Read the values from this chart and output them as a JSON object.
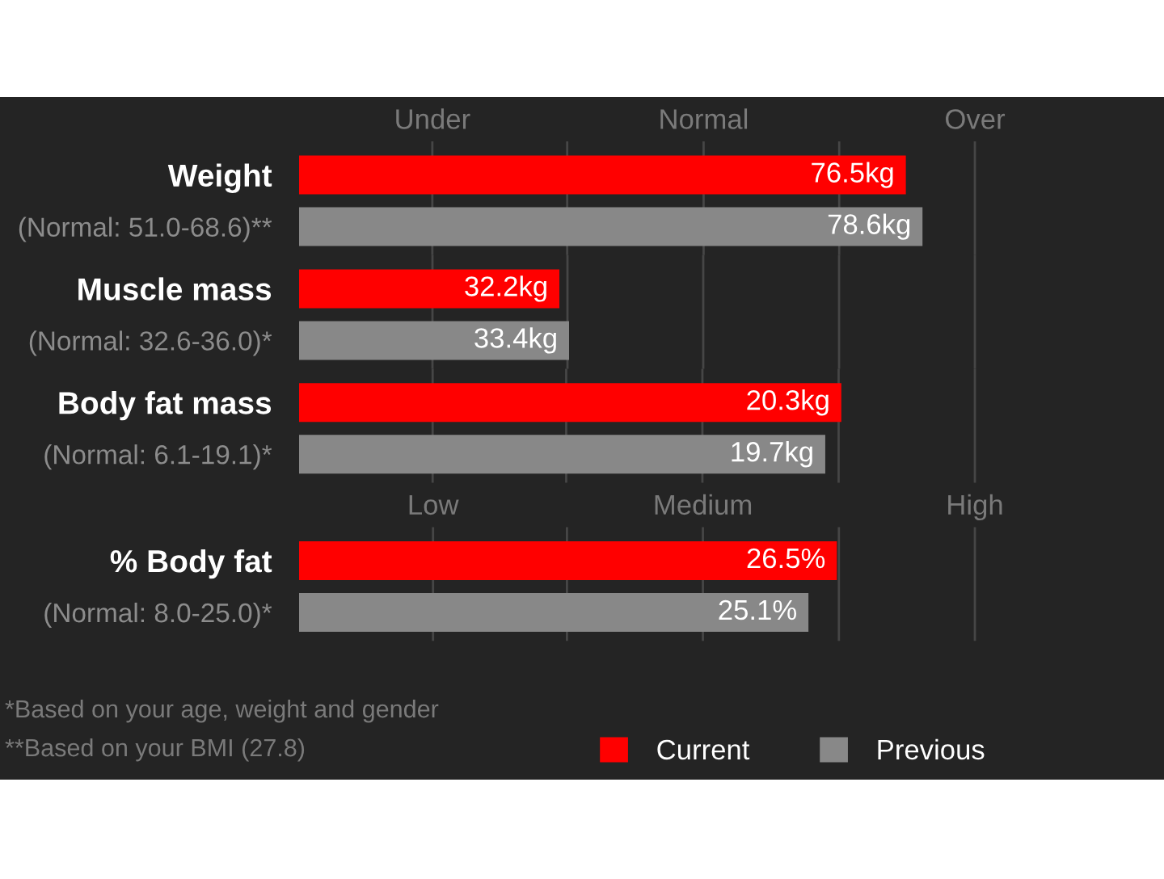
{
  "chart_data": [
    {
      "type": "bar",
      "orientation": "horizontal",
      "categories": [
        "Weight",
        "(Normal: 51.0-68.6)**"
      ],
      "series": [
        {
          "color": "#ff0000",
          "values": [
            76.5,
            null
          ],
          "value_labels": [
            "76.5kg",
            null
          ]
        },
        {
          "color": "#888888",
          "values": [
            null,
            78.6
          ],
          "value_labels": [
            null,
            "78.6kg"
          ]
        }
      ],
      "ref_lines": [
        {
          "axis": "x",
          "value": 16.8,
          "label": "Under",
          "color": "#464646"
        },
        {
          "axis": "x",
          "value": 33.8,
          "color": "#464646"
        },
        {
          "axis": "x",
          "value": 51.0,
          "label": "Normal",
          "color": "#464646"
        },
        {
          "axis": "x",
          "value": 68.1,
          "color": "#464646"
        },
        {
          "axis": "x",
          "value": 85.2,
          "label": "Over",
          "color": "#464646"
        }
      ]
    },
    {
      "type": "bar",
      "orientation": "horizontal",
      "categories": [
        "Muscle mass",
        "(Normal: 32.6-36.0)*"
      ],
      "series": [
        {
          "color": "#ff0000",
          "values": [
            32.2,
            null
          ],
          "value_labels": [
            "32.2kg",
            null
          ]
        },
        {
          "color": "#888888",
          "values": [
            null,
            33.4
          ],
          "value_labels": [
            null,
            "33.4kg"
          ]
        }
      ],
      "ref_lines": [
        {
          "axis": "x",
          "value": 16.5,
          "color": "#464646"
        },
        {
          "axis": "x",
          "value": 33.2,
          "color": "#464646"
        },
        {
          "axis": "x",
          "value": 50.0,
          "color": "#464646"
        },
        {
          "axis": "x",
          "value": 66.8,
          "color": "#464646"
        },
        {
          "axis": "x",
          "value": 83.6,
          "color": "#464646"
        }
      ]
    },
    {
      "type": "bar",
      "orientation": "horizontal",
      "categories": [
        "Body fat mass",
        "(Normal: 6.1-19.1)*"
      ],
      "series": [
        {
          "color": "#ff0000",
          "values": [
            20.3,
            null
          ],
          "value_labels": [
            "20.3kg",
            null
          ]
        },
        {
          "color": "#888888",
          "values": [
            null,
            19.7
          ],
          "value_labels": [
            null,
            "19.7kg"
          ]
        }
      ],
      "ref_lines": [
        {
          "axis": "x",
          "value": 5.0,
          "color": "#464646"
        },
        {
          "axis": "x",
          "value": 10.0,
          "color": "#464646"
        },
        {
          "axis": "x",
          "value": 15.1,
          "color": "#464646"
        },
        {
          "axis": "x",
          "value": 20.2,
          "color": "#464646"
        },
        {
          "axis": "x",
          "value": 25.3,
          "color": "#464646"
        }
      ]
    },
    {
      "type": "bar",
      "orientation": "horizontal",
      "categories": [
        "% Body fat",
        "(Normal: 8.0-25.0)*"
      ],
      "series": [
        {
          "name": "Current",
          "color": "#ff0000",
          "values": [
            26.5,
            null
          ],
          "value_labels": [
            "26.5%",
            null
          ]
        },
        {
          "name": "Previous",
          "color": "#888888",
          "values": [
            null,
            25.1
          ],
          "value_labels": [
            null,
            "25.1%"
          ]
        }
      ],
      "ref_lines": [
        {
          "axis": "x",
          "value": 6.6,
          "label": "Low",
          "color": "#464646"
        },
        {
          "axis": "x",
          "value": 13.2,
          "color": "#464646"
        },
        {
          "axis": "x",
          "value": 19.9,
          "label": "Medium",
          "color": "#464646"
        },
        {
          "axis": "x",
          "value": 26.6,
          "color": "#464646"
        },
        {
          "axis": "x",
          "value": 33.3,
          "label": "High",
          "color": "#464646"
        }
      ],
      "legend": "bottom right",
      "annotations": [
        "*Based on your age, weight and gender",
        "**Based on your BMI (27.8)"
      ]
    }
  ]
}
